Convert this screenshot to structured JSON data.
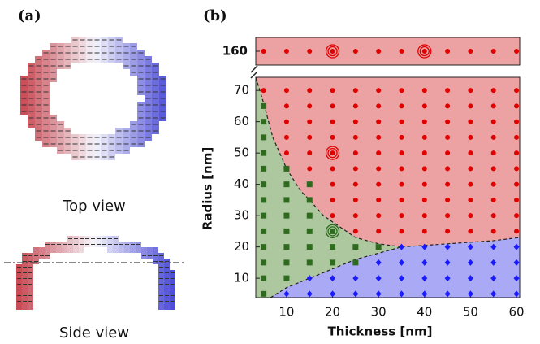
{
  "panels": {
    "a": {
      "label": "(a)",
      "top_caption": "Top view",
      "side_caption": "Side view"
    },
    "b": {
      "label": "(b)"
    }
  },
  "chart_data": {
    "type": "scatter",
    "xlabel": "Thickness [nm]",
    "ylabel": "Radius [nm]",
    "xlim": [
      3.3,
      60.7
    ],
    "xticks": [
      10,
      20,
      30,
      40,
      50,
      60
    ],
    "ylim": [
      3.8,
      74.2
    ],
    "yticks": [
      10,
      20,
      30,
      40,
      50,
      60,
      70
    ],
    "ylim_top": [
      156,
      164
    ],
    "yticks_top": [
      160
    ],
    "regions": {
      "red": "#eca2a2",
      "green": "#adc89f",
      "blue": "#a9a9f6"
    },
    "boundaries": {
      "upper": {
        "x": [
          3.3,
          5,
          7,
          10,
          13,
          15,
          18,
          20,
          25,
          30,
          35
        ],
        "y": [
          74.2,
          66,
          55,
          45,
          38,
          35,
          30,
          28,
          23,
          21,
          20
        ]
      },
      "lower": {
        "x": [
          6.5,
          10,
          15,
          20,
          25,
          30,
          35
        ],
        "y": [
          3.8,
          7,
          10,
          13,
          16,
          18,
          20
        ]
      },
      "right": {
        "x": [
          35,
          40,
          45,
          50,
          55,
          60.7
        ],
        "y": [
          20,
          20.5,
          21,
          21.5,
          22,
          23
        ]
      }
    },
    "series": [
      {
        "marker": "square",
        "color": "#2e6b1f",
        "axis": "y",
        "x": [
          5,
          5,
          5,
          5,
          5,
          5,
          5,
          5,
          5,
          5,
          5,
          5,
          5,
          10,
          10,
          10,
          10,
          10,
          10,
          10,
          10,
          15,
          15,
          15,
          15,
          15,
          15,
          20,
          20,
          20,
          25,
          25,
          30
        ],
        "y": [
          5,
          10,
          15,
          20,
          25,
          30,
          35,
          40,
          45,
          50,
          55,
          60,
          65,
          10,
          15,
          20,
          25,
          30,
          35,
          40,
          45,
          15,
          20,
          25,
          30,
          35,
          40,
          15,
          20,
          25,
          15,
          20,
          20
        ]
      },
      {
        "marker": "diamond",
        "color": "#1a1aff",
        "axis": "y",
        "x": [
          10,
          15,
          15,
          20,
          20,
          25,
          25,
          30,
          30,
          30,
          35,
          35,
          35,
          35,
          40,
          40,
          40,
          40,
          45,
          45,
          45,
          45,
          50,
          50,
          50,
          50,
          55,
          55,
          55,
          55,
          60,
          60,
          60,
          60
        ],
        "y": [
          5,
          5,
          10,
          5,
          10,
          5,
          10,
          5,
          10,
          15,
          5,
          10,
          15,
          20,
          5,
          10,
          15,
          20,
          5,
          10,
          15,
          20,
          5,
          10,
          15,
          20,
          5,
          10,
          15,
          20,
          5,
          10,
          15,
          20
        ]
      },
      {
        "marker": "circle",
        "color": "#e00000",
        "axis": "y",
        "x": [
          5,
          10,
          10,
          10,
          10,
          10,
          15,
          15,
          15,
          15,
          15,
          15,
          20,
          20,
          20,
          20,
          20,
          20,
          20,
          20,
          20,
          25,
          25,
          25,
          25,
          25,
          25,
          25,
          25,
          25,
          25,
          30,
          30,
          30,
          30,
          30,
          30,
          30,
          30,
          30,
          30,
          35,
          35,
          35,
          35,
          35,
          35,
          35,
          35,
          35,
          35,
          40,
          40,
          40,
          40,
          40,
          40,
          40,
          40,
          40,
          40,
          45,
          45,
          45,
          45,
          45,
          45,
          45,
          45,
          45,
          45,
          50,
          50,
          50,
          50,
          50,
          50,
          50,
          50,
          50,
          50,
          55,
          55,
          55,
          55,
          55,
          55,
          55,
          55,
          55,
          55,
          60,
          60,
          60,
          60,
          60,
          60,
          60,
          60,
          60,
          60
        ],
        "y": [
          70,
          50,
          55,
          60,
          65,
          70,
          45,
          50,
          55,
          60,
          65,
          70,
          30,
          35,
          40,
          45,
          50,
          55,
          60,
          65,
          70,
          25,
          30,
          35,
          40,
          45,
          50,
          55,
          60,
          65,
          70,
          25,
          30,
          35,
          40,
          45,
          50,
          55,
          60,
          65,
          70,
          25,
          30,
          35,
          40,
          45,
          50,
          55,
          60,
          65,
          70,
          25,
          30,
          35,
          40,
          45,
          50,
          55,
          60,
          65,
          70,
          25,
          30,
          35,
          40,
          45,
          50,
          55,
          60,
          65,
          70,
          25,
          30,
          35,
          40,
          45,
          50,
          55,
          60,
          65,
          70,
          25,
          30,
          35,
          40,
          45,
          50,
          55,
          60,
          65,
          70,
          25,
          30,
          35,
          40,
          45,
          50,
          55,
          60,
          65,
          70
        ]
      },
      {
        "marker": "circle",
        "color": "#e00000",
        "axis": "top",
        "x": [
          5,
          10,
          15,
          20,
          25,
          30,
          35,
          40,
          45,
          50,
          55,
          60
        ],
        "y": [
          160,
          160,
          160,
          160,
          160,
          160,
          160,
          160,
          160,
          160,
          160,
          160
        ]
      },
      {
        "marker": "ring",
        "color": "#e00000",
        "axis": "top",
        "x": [
          20,
          40
        ],
        "y": [
          160,
          160
        ]
      },
      {
        "marker": "ring",
        "color": "#e00000",
        "axis": "y",
        "x": [
          20
        ],
        "y": [
          50
        ]
      },
      {
        "marker": "ring",
        "color": "#2e6b1f",
        "axis": "y",
        "x": [
          20
        ],
        "y": [
          25
        ]
      }
    ]
  }
}
